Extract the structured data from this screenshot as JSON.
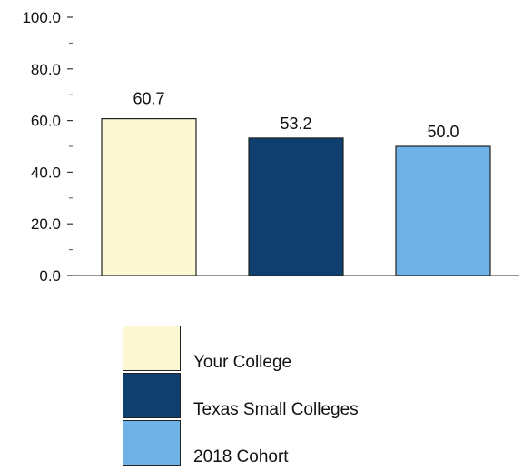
{
  "chart_data": {
    "type": "bar",
    "categories": [
      "Your College",
      "Texas Small Colleges",
      "2018 Cohort"
    ],
    "values": [
      60.7,
      53.2,
      50.0
    ],
    "value_labels": [
      "60.7",
      "53.2",
      "50.0"
    ],
    "colors": [
      "#fdf8d4",
      "#0f3f6e",
      "#6fb2e6"
    ],
    "title": "",
    "xlabel": "",
    "ylabel": "",
    "ylim": [
      0,
      100
    ],
    "y_ticks": [
      0,
      20,
      40,
      60,
      80,
      100
    ],
    "y_tick_labels": [
      "0.0",
      "20.0",
      "40.0",
      "60.0",
      "80.0",
      "100.0"
    ],
    "grid": false,
    "legend_position": "bottom"
  },
  "legend": {
    "items": [
      {
        "label": "Your College",
        "color": "#fdf8d4"
      },
      {
        "label": "Texas Small Colleges",
        "color": "#0f3f6e"
      },
      {
        "label": "2018 Cohort",
        "color": "#6fb2e6"
      }
    ]
  }
}
